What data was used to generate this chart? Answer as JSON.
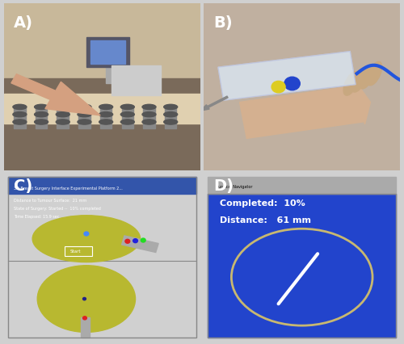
{
  "figure_bg": "#d0d0d0",
  "panel_labels": [
    "A)",
    "B)",
    "C)",
    "D)"
  ],
  "label_color": "white",
  "label_fontsize": 14,
  "label_fontweight": "bold",
  "compass_bg": "#2244cc",
  "compass_text_color": "white",
  "compass_text_1": "Completed:  10%",
  "compass_text_2": "Distance:   61 mm",
  "compass_circle_color": "#c8b870",
  "disk_color": "#b8b830",
  "ui_bg": "#1a1a1a",
  "ui_text_1": "Distance to Tumour Surface:  21 mm",
  "ui_text_2": "State of Surgery: Started --  10% completed",
  "ui_text_3": "Time Elapsed: 15.9 sec."
}
